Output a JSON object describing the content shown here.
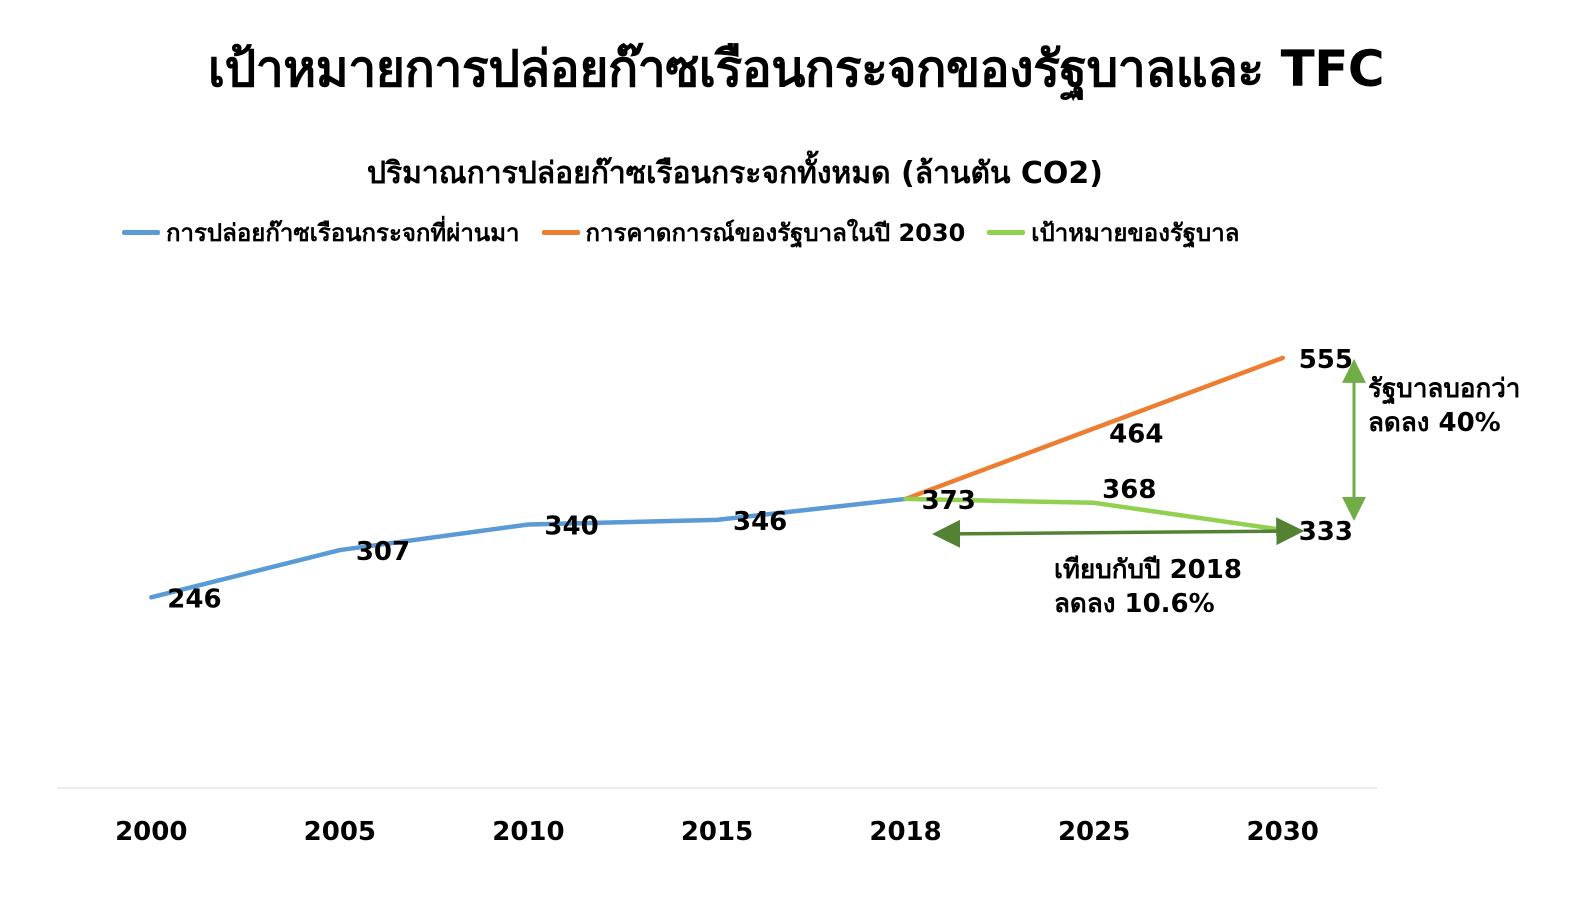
{
  "title": "เป้าหมายการปล่อยก๊าซเรือนกระจกของรัฐบาลและ TFC",
  "chart_data": {
    "type": "line",
    "title": "ปริมาณการปล่อยก๊าซเรือนกระจกทั้งหมด (ล้านตัน CO2)",
    "categories": [
      "2000",
      "2005",
      "2010",
      "2015",
      "2018",
      "2025",
      "2030"
    ],
    "ylim": [
      0,
      650
    ],
    "grid": false,
    "legend_position": "top",
    "series": [
      {
        "name": "การปล่อยก๊าซเรือนกระจกที่ผ่านมา",
        "color": "#5B9BD5",
        "points": [
          {
            "x": "2000",
            "y": 246,
            "label": "246"
          },
          {
            "x": "2005",
            "y": 307,
            "label": "307"
          },
          {
            "x": "2010",
            "y": 340,
            "label": "340"
          },
          {
            "x": "2015",
            "y": 346,
            "label": "346"
          },
          {
            "x": "2018",
            "y": 373,
            "label": "373"
          }
        ]
      },
      {
        "name": "การคาดการณ์ของรัฐบาลในปี 2030",
        "color": "#ED7D31",
        "points": [
          {
            "x": "2018",
            "y": 373,
            "label": ""
          },
          {
            "x": "2025",
            "y": 464,
            "label": "464"
          },
          {
            "x": "2030",
            "y": 555,
            "label": "555"
          }
        ]
      },
      {
        "name": "เป้าหมายของรัฐบาล",
        "color": "#92D050",
        "points": [
          {
            "x": "2018",
            "y": 373,
            "label": ""
          },
          {
            "x": "2025",
            "y": 368,
            "label": "368"
          },
          {
            "x": "2030",
            "y": 333,
            "label": "333"
          }
        ]
      }
    ],
    "annotations": [
      {
        "id": "gov-claim",
        "text": [
          "รัฐบาลบอกว่า",
          "ลดลง 40%"
        ],
        "color": "#70AD47"
      },
      {
        "id": "vs-2018",
        "text": [
          "เทียบกับปี 2018",
          "ลดลง 10.6%"
        ],
        "color": "#548235"
      }
    ]
  }
}
